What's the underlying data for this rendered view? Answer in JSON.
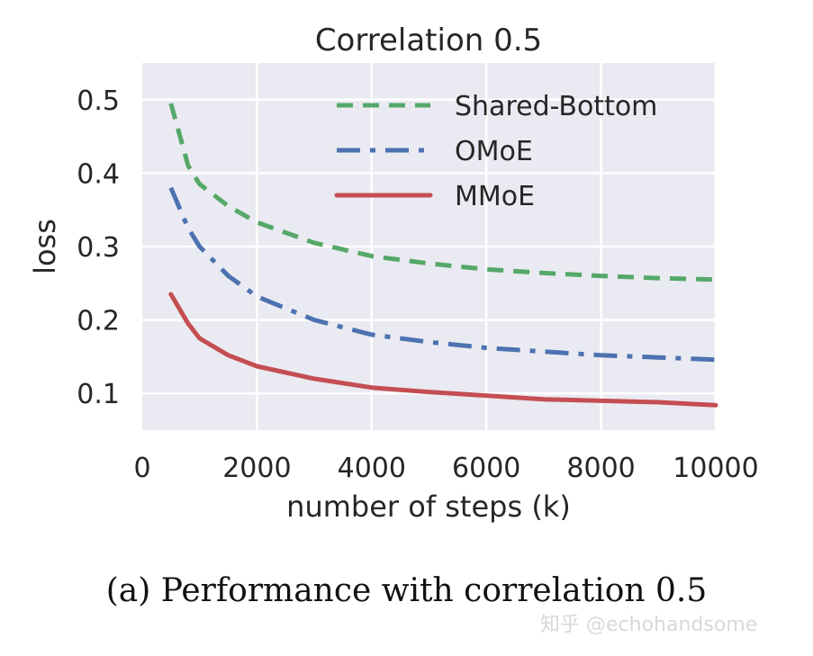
{
  "chart_data": {
    "type": "line",
    "title": "Correlation 0.5",
    "xlabel": "number of steps (k)",
    "ylabel": "loss",
    "xlim": [
      0,
      10000
    ],
    "ylim": [
      0.05,
      0.55
    ],
    "xticks": [
      0,
      2000,
      4000,
      6000,
      8000,
      10000
    ],
    "yticks": [
      0.1,
      0.2,
      0.3,
      0.4,
      0.5
    ],
    "grid": true,
    "legend": "top-right",
    "x": [
      500,
      800,
      1000,
      1500,
      2000,
      3000,
      4000,
      5000,
      6000,
      7000,
      8000,
      9000,
      10000
    ],
    "series": [
      {
        "name": "Shared-Bottom",
        "color": "#55a868",
        "style": "dashed",
        "values": [
          0.495,
          0.41,
          0.385,
          0.355,
          0.333,
          0.305,
          0.287,
          0.277,
          0.269,
          0.264,
          0.26,
          0.257,
          0.255
        ]
      },
      {
        "name": "OMoE",
        "color": "#4c72b0",
        "style": "dashdot",
        "values": [
          0.38,
          0.325,
          0.3,
          0.26,
          0.232,
          0.2,
          0.18,
          0.17,
          0.162,
          0.157,
          0.152,
          0.149,
          0.146
        ]
      },
      {
        "name": "MMoE",
        "color": "#c44e52",
        "style": "solid",
        "values": [
          0.235,
          0.195,
          0.175,
          0.152,
          0.137,
          0.12,
          0.108,
          0.102,
          0.097,
          0.092,
          0.09,
          0.088,
          0.084
        ]
      }
    ]
  },
  "caption": "(a) Performance with correlation 0.5",
  "watermark": "知乎 @echohandsome"
}
